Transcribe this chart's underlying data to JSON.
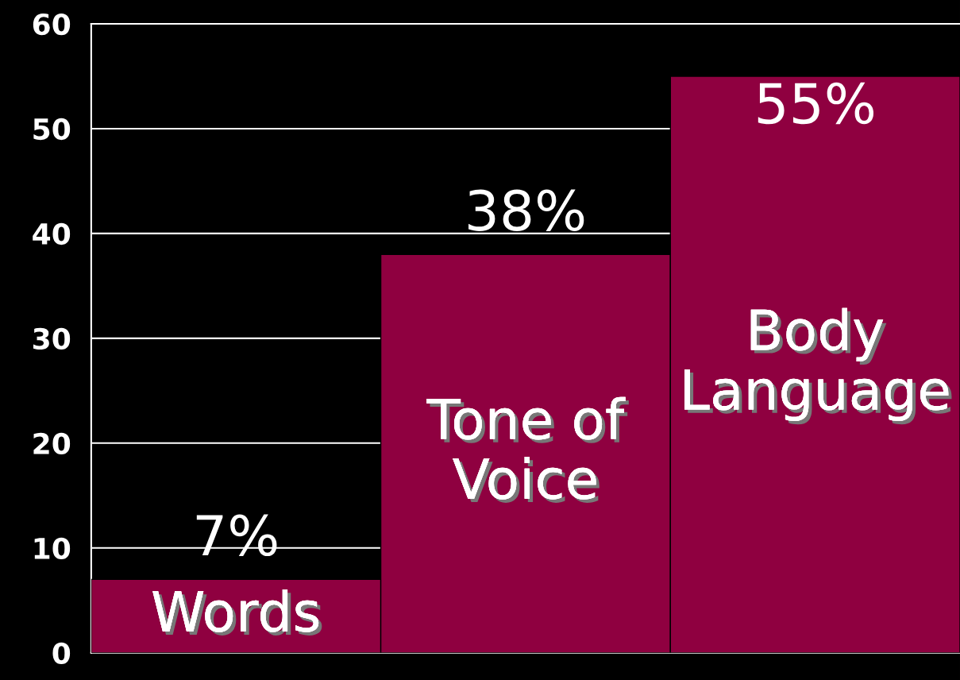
{
  "chart_data": {
    "type": "bar",
    "categories": [
      "Words",
      "Tone of Voice",
      "Body Language"
    ],
    "values": [
      7,
      38,
      55
    ],
    "value_labels": [
      "7%",
      "38%",
      "55%"
    ],
    "color": "#8f0040",
    "ylim": [
      0,
      60
    ],
    "yticks": [
      0,
      10,
      20,
      30,
      40,
      50,
      60
    ],
    "grid": "y"
  }
}
